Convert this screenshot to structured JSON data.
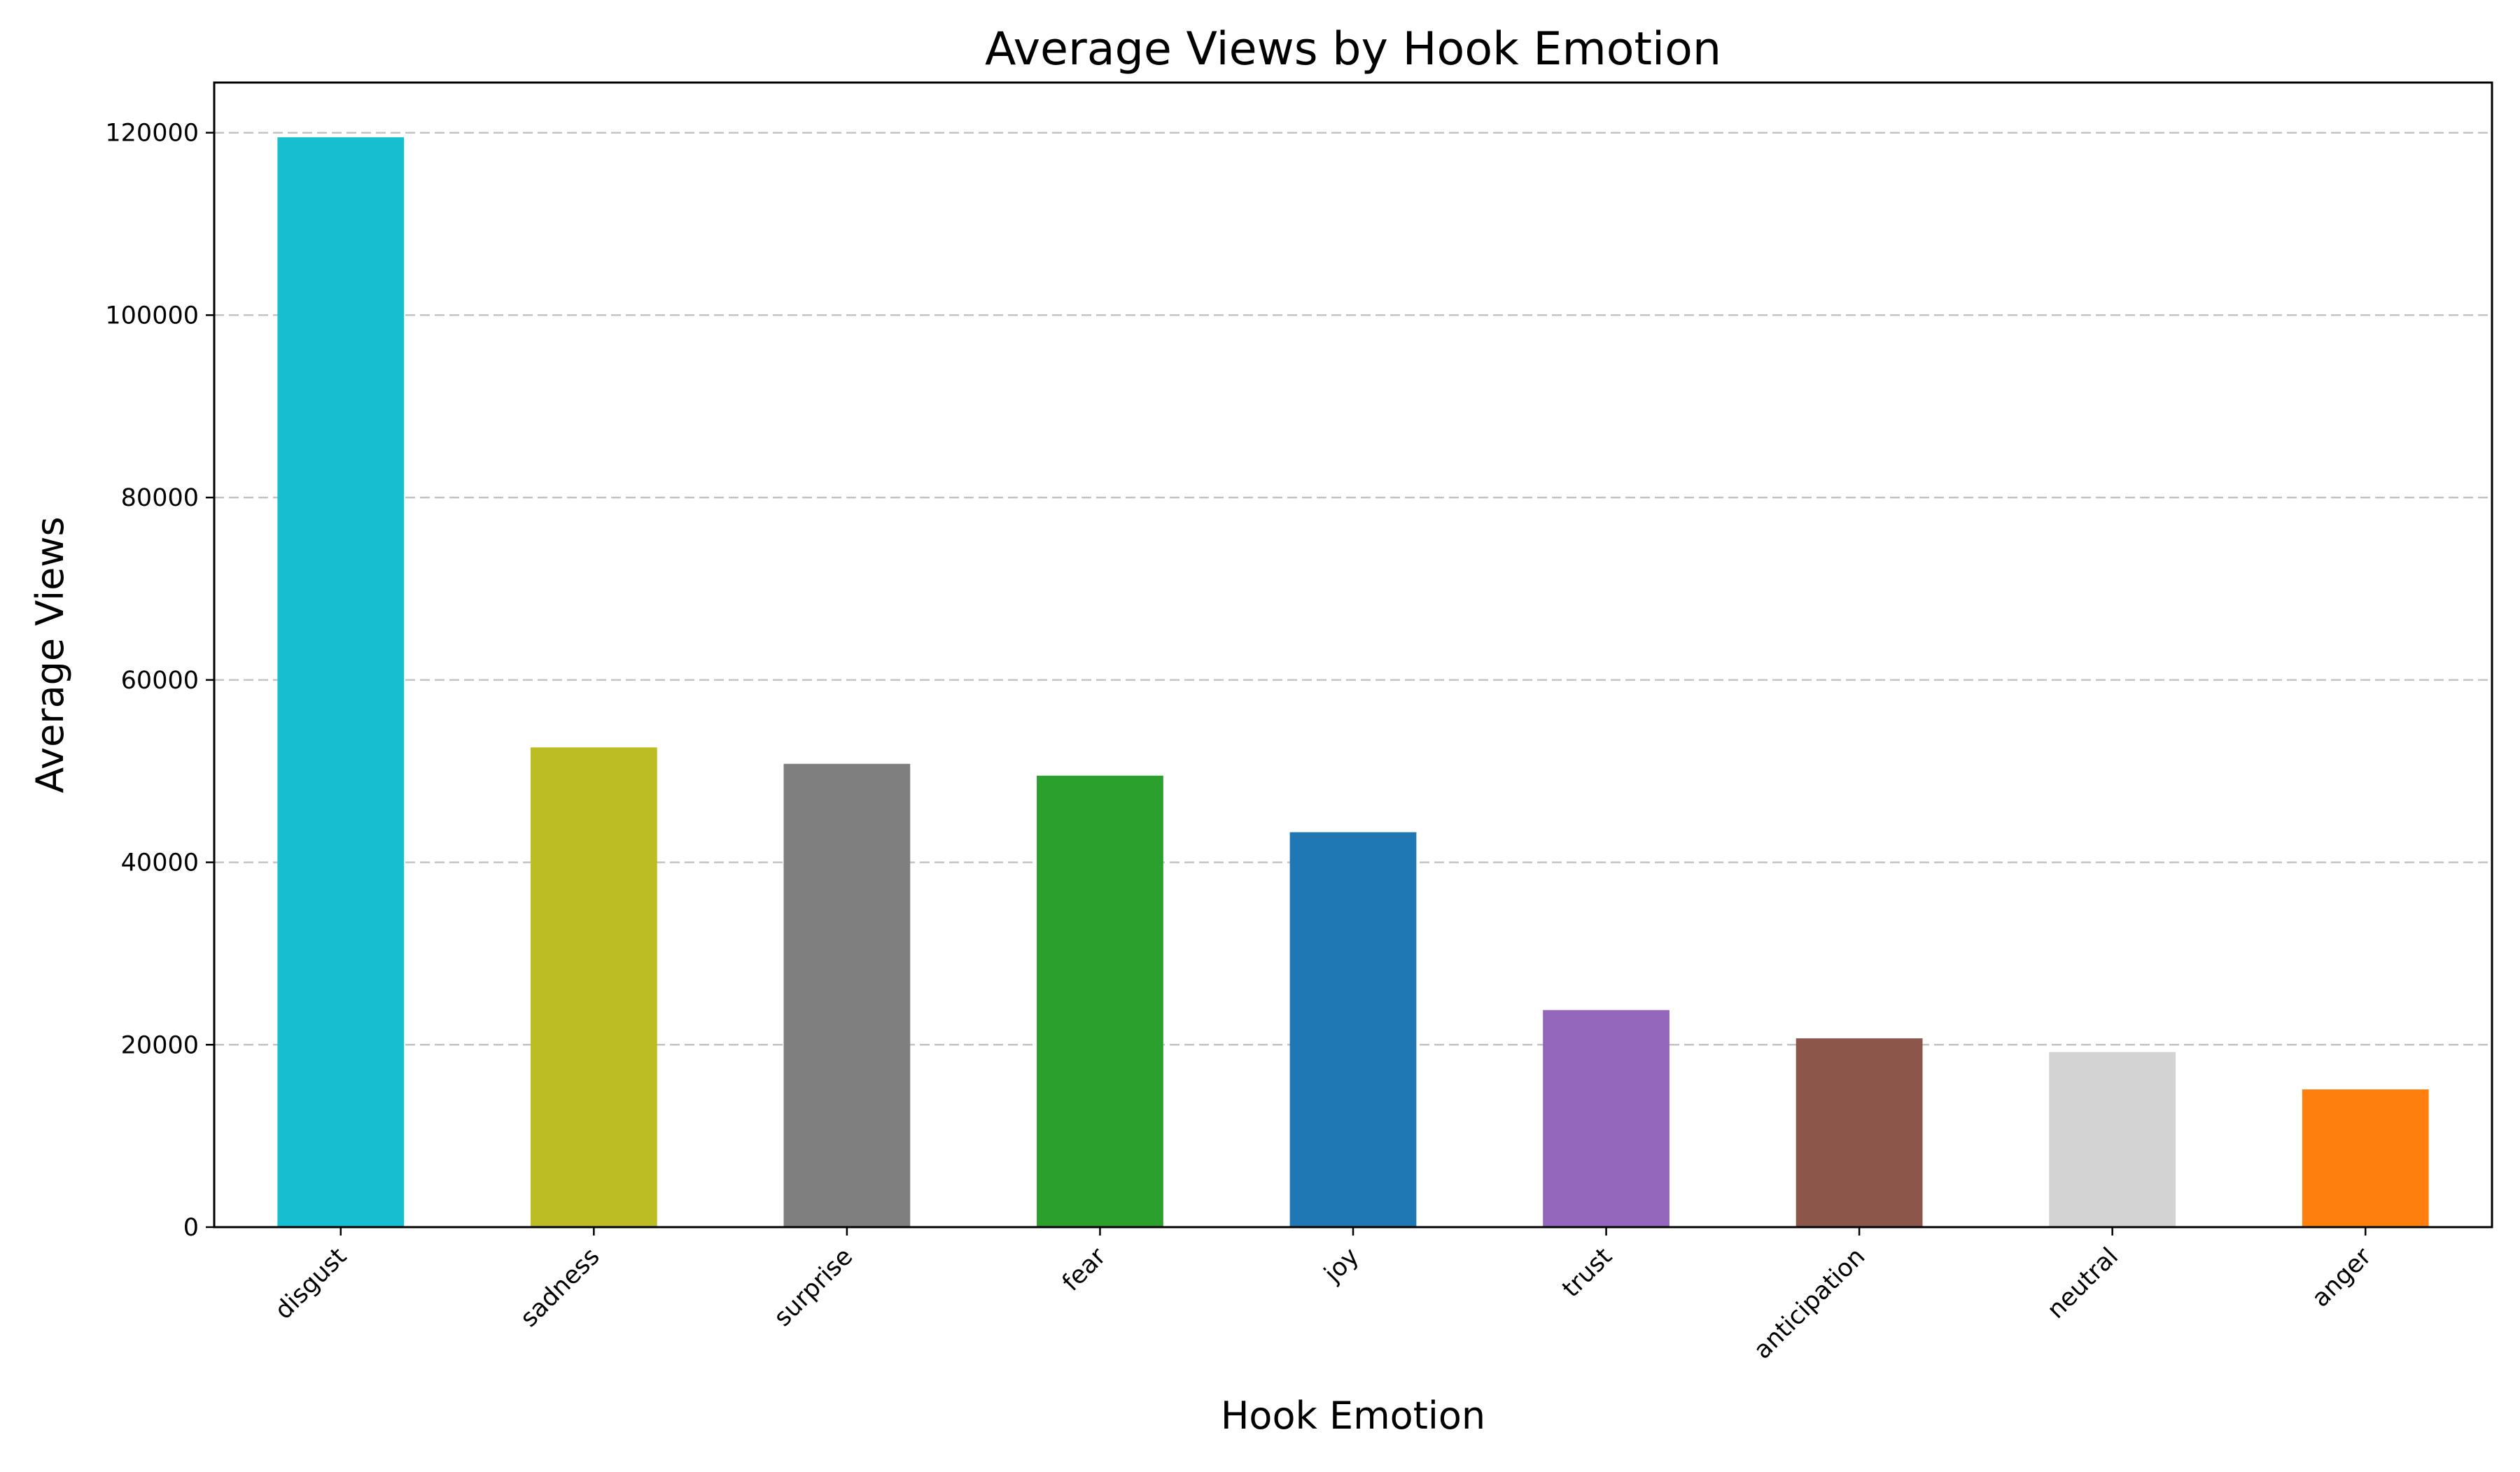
{
  "chart_data": {
    "type": "bar",
    "title": "Average Views by Hook Emotion",
    "xlabel": "Hook Emotion",
    "ylabel": "Average Views",
    "categories": [
      "disgust",
      "sadness",
      "surprise",
      "fear",
      "joy",
      "trust",
      "anticipation",
      "neutral",
      "anger"
    ],
    "values": [
      119500,
      52600,
      50800,
      49500,
      43300,
      23800,
      20700,
      19200,
      15100
    ],
    "colors": [
      "#17becf",
      "#bcbd22",
      "#7f7f7f",
      "#2ca02c",
      "#1f77b4",
      "#9467bd",
      "#8c564b",
      "#d3d3d3",
      "#ff7f0e"
    ],
    "ylim": [
      0,
      125500
    ],
    "yticks": [
      0,
      20000,
      40000,
      60000,
      80000,
      100000,
      120000
    ],
    "ytick_labels": [
      "0",
      "20000",
      "40000",
      "60000",
      "80000",
      "100000",
      "120000"
    ],
    "grid": "y-dashed",
    "legend": "none"
  }
}
